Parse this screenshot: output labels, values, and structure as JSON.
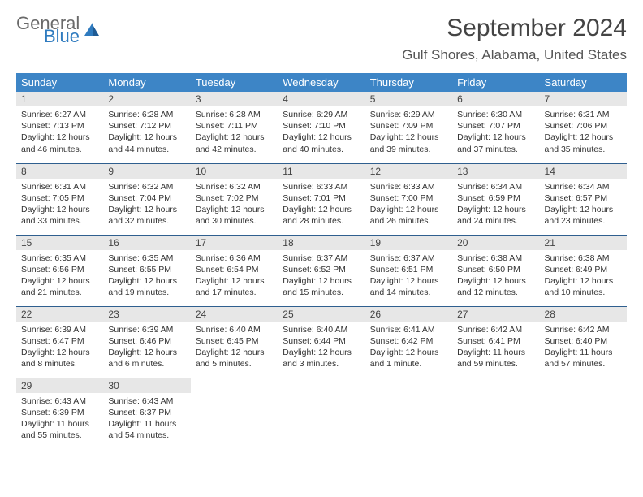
{
  "brand": {
    "part1": "General",
    "part2": "Blue"
  },
  "title": "September 2024",
  "location": "Gulf Shores, Alabama, United States",
  "colors": {
    "header_bg": "#3d85c6",
    "header_text": "#ffffff",
    "daynum_bg": "#e7e7e7",
    "row_border": "#2f5f8f",
    "brand_gray": "#6a6a6a",
    "brand_blue": "#2f7bbf"
  },
  "weekdays": [
    "Sunday",
    "Monday",
    "Tuesday",
    "Wednesday",
    "Thursday",
    "Friday",
    "Saturday"
  ],
  "weeks": [
    [
      {
        "n": "1",
        "sr": "Sunrise: 6:27 AM",
        "ss": "Sunset: 7:13 PM",
        "dl1": "Daylight: 12 hours",
        "dl2": "and 46 minutes."
      },
      {
        "n": "2",
        "sr": "Sunrise: 6:28 AM",
        "ss": "Sunset: 7:12 PM",
        "dl1": "Daylight: 12 hours",
        "dl2": "and 44 minutes."
      },
      {
        "n": "3",
        "sr": "Sunrise: 6:28 AM",
        "ss": "Sunset: 7:11 PM",
        "dl1": "Daylight: 12 hours",
        "dl2": "and 42 minutes."
      },
      {
        "n": "4",
        "sr": "Sunrise: 6:29 AM",
        "ss": "Sunset: 7:10 PM",
        "dl1": "Daylight: 12 hours",
        "dl2": "and 40 minutes."
      },
      {
        "n": "5",
        "sr": "Sunrise: 6:29 AM",
        "ss": "Sunset: 7:09 PM",
        "dl1": "Daylight: 12 hours",
        "dl2": "and 39 minutes."
      },
      {
        "n": "6",
        "sr": "Sunrise: 6:30 AM",
        "ss": "Sunset: 7:07 PM",
        "dl1": "Daylight: 12 hours",
        "dl2": "and 37 minutes."
      },
      {
        "n": "7",
        "sr": "Sunrise: 6:31 AM",
        "ss": "Sunset: 7:06 PM",
        "dl1": "Daylight: 12 hours",
        "dl2": "and 35 minutes."
      }
    ],
    [
      {
        "n": "8",
        "sr": "Sunrise: 6:31 AM",
        "ss": "Sunset: 7:05 PM",
        "dl1": "Daylight: 12 hours",
        "dl2": "and 33 minutes."
      },
      {
        "n": "9",
        "sr": "Sunrise: 6:32 AM",
        "ss": "Sunset: 7:04 PM",
        "dl1": "Daylight: 12 hours",
        "dl2": "and 32 minutes."
      },
      {
        "n": "10",
        "sr": "Sunrise: 6:32 AM",
        "ss": "Sunset: 7:02 PM",
        "dl1": "Daylight: 12 hours",
        "dl2": "and 30 minutes."
      },
      {
        "n": "11",
        "sr": "Sunrise: 6:33 AM",
        "ss": "Sunset: 7:01 PM",
        "dl1": "Daylight: 12 hours",
        "dl2": "and 28 minutes."
      },
      {
        "n": "12",
        "sr": "Sunrise: 6:33 AM",
        "ss": "Sunset: 7:00 PM",
        "dl1": "Daylight: 12 hours",
        "dl2": "and 26 minutes."
      },
      {
        "n": "13",
        "sr": "Sunrise: 6:34 AM",
        "ss": "Sunset: 6:59 PM",
        "dl1": "Daylight: 12 hours",
        "dl2": "and 24 minutes."
      },
      {
        "n": "14",
        "sr": "Sunrise: 6:34 AM",
        "ss": "Sunset: 6:57 PM",
        "dl1": "Daylight: 12 hours",
        "dl2": "and 23 minutes."
      }
    ],
    [
      {
        "n": "15",
        "sr": "Sunrise: 6:35 AM",
        "ss": "Sunset: 6:56 PM",
        "dl1": "Daylight: 12 hours",
        "dl2": "and 21 minutes."
      },
      {
        "n": "16",
        "sr": "Sunrise: 6:35 AM",
        "ss": "Sunset: 6:55 PM",
        "dl1": "Daylight: 12 hours",
        "dl2": "and 19 minutes."
      },
      {
        "n": "17",
        "sr": "Sunrise: 6:36 AM",
        "ss": "Sunset: 6:54 PM",
        "dl1": "Daylight: 12 hours",
        "dl2": "and 17 minutes."
      },
      {
        "n": "18",
        "sr": "Sunrise: 6:37 AM",
        "ss": "Sunset: 6:52 PM",
        "dl1": "Daylight: 12 hours",
        "dl2": "and 15 minutes."
      },
      {
        "n": "19",
        "sr": "Sunrise: 6:37 AM",
        "ss": "Sunset: 6:51 PM",
        "dl1": "Daylight: 12 hours",
        "dl2": "and 14 minutes."
      },
      {
        "n": "20",
        "sr": "Sunrise: 6:38 AM",
        "ss": "Sunset: 6:50 PM",
        "dl1": "Daylight: 12 hours",
        "dl2": "and 12 minutes."
      },
      {
        "n": "21",
        "sr": "Sunrise: 6:38 AM",
        "ss": "Sunset: 6:49 PM",
        "dl1": "Daylight: 12 hours",
        "dl2": "and 10 minutes."
      }
    ],
    [
      {
        "n": "22",
        "sr": "Sunrise: 6:39 AM",
        "ss": "Sunset: 6:47 PM",
        "dl1": "Daylight: 12 hours",
        "dl2": "and 8 minutes."
      },
      {
        "n": "23",
        "sr": "Sunrise: 6:39 AM",
        "ss": "Sunset: 6:46 PM",
        "dl1": "Daylight: 12 hours",
        "dl2": "and 6 minutes."
      },
      {
        "n": "24",
        "sr": "Sunrise: 6:40 AM",
        "ss": "Sunset: 6:45 PM",
        "dl1": "Daylight: 12 hours",
        "dl2": "and 5 minutes."
      },
      {
        "n": "25",
        "sr": "Sunrise: 6:40 AM",
        "ss": "Sunset: 6:44 PM",
        "dl1": "Daylight: 12 hours",
        "dl2": "and 3 minutes."
      },
      {
        "n": "26",
        "sr": "Sunrise: 6:41 AM",
        "ss": "Sunset: 6:42 PM",
        "dl1": "Daylight: 12 hours",
        "dl2": "and 1 minute."
      },
      {
        "n": "27",
        "sr": "Sunrise: 6:42 AM",
        "ss": "Sunset: 6:41 PM",
        "dl1": "Daylight: 11 hours",
        "dl2": "and 59 minutes."
      },
      {
        "n": "28",
        "sr": "Sunrise: 6:42 AM",
        "ss": "Sunset: 6:40 PM",
        "dl1": "Daylight: 11 hours",
        "dl2": "and 57 minutes."
      }
    ],
    [
      {
        "n": "29",
        "sr": "Sunrise: 6:43 AM",
        "ss": "Sunset: 6:39 PM",
        "dl1": "Daylight: 11 hours",
        "dl2": "and 55 minutes."
      },
      {
        "n": "30",
        "sr": "Sunrise: 6:43 AM",
        "ss": "Sunset: 6:37 PM",
        "dl1": "Daylight: 11 hours",
        "dl2": "and 54 minutes."
      },
      null,
      null,
      null,
      null,
      null
    ]
  ]
}
